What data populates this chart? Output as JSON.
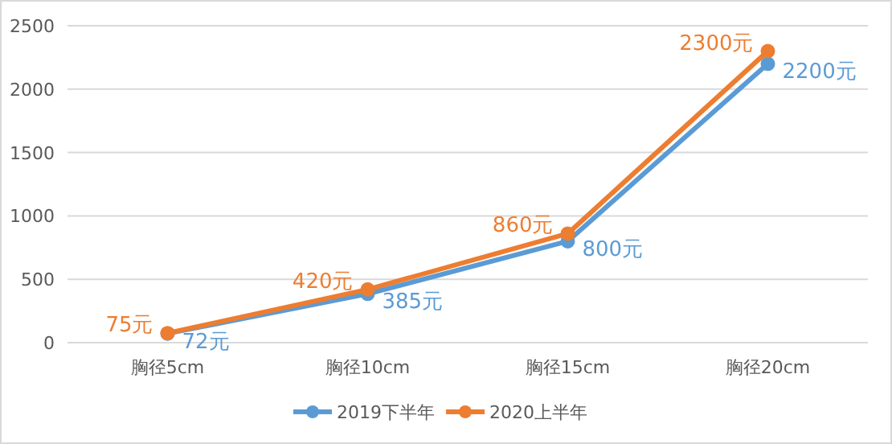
{
  "chart_data": {
    "type": "line",
    "categories": [
      "胸径5cm",
      "胸径10cm",
      "胸径15cm",
      "胸径20cm"
    ],
    "series": [
      {
        "name": "2019下半年",
        "color": "#5b9bd5",
        "values": [
          72,
          385,
          800,
          2200
        ],
        "value_labels": [
          "72元",
          "385元",
          "800元",
          "2200元"
        ]
      },
      {
        "name": "2020上半年",
        "color": "#ed7d31",
        "values": [
          75,
          420,
          860,
          2300
        ],
        "value_labels": [
          "75元",
          "420元",
          "860元",
          "2300元"
        ]
      }
    ],
    "ylim": [
      0,
      2500
    ],
    "yticks": [
      0,
      500,
      1000,
      1500,
      2000,
      2500
    ],
    "grid": "y",
    "legend": "bottom",
    "marker": "circle",
    "line_style": "solid"
  }
}
